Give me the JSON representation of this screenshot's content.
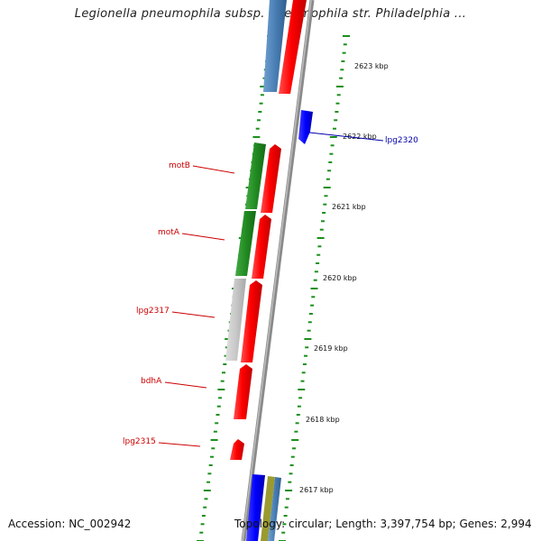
{
  "title": "Legionella pneumophila subsp. pneumophila str. Philadelphia ...",
  "footer": {
    "accession": "Accession: NC_002942",
    "topology": "Topology: circular; Length: 3,397,754 bp; Genes: 2,994"
  },
  "scale_labels": [
    "2623 kbp",
    "2622 kbp",
    "2621 kbp",
    "2620 kbp",
    "2619 kbp",
    "2618 kbp",
    "2617 kbp"
  ],
  "genes": {
    "motB": "motB",
    "motA": "motA",
    "lpg2317": "lpg2317",
    "bdhA": "bdhA",
    "lpg2315": "lpg2315",
    "lpg2320": "lpg2320"
  },
  "colors": {
    "gene_red": "#ff0000",
    "gene_green": "#228b22",
    "gene_blue": "#0000ff",
    "gene_steel": "#4a7fb5",
    "gene_gray": "#c8c8c8",
    "label_red": "#cc0000",
    "label_blue": "#0000aa",
    "tick_green": "#1a8f1a",
    "backbone": "#7a7a7a"
  }
}
